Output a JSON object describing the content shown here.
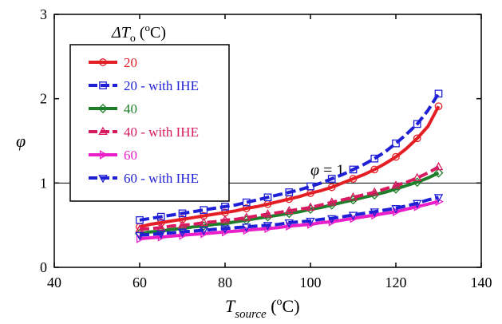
{
  "chart_data": {
    "type": "line",
    "xlabel": "T_source (°C)",
    "ylabel": "φ",
    "xlim": [
      40,
      140
    ],
    "ylim": [
      0,
      3
    ],
    "xticks": [
      40,
      60,
      80,
      100,
      120,
      140
    ],
    "yticks": [
      0,
      1,
      2,
      3
    ],
    "legend_title": "ΔT_o (°C)",
    "legend_placement": "top-left",
    "grid": false,
    "reference_line": {
      "y": 1,
      "label": "φ = 1"
    },
    "x": [
      60,
      62.5,
      65,
      67.5,
      70,
      72.5,
      75,
      77.5,
      80,
      82.5,
      85,
      87.5,
      90,
      92.5,
      95,
      97.5,
      100,
      102.5,
      105,
      107.5,
      110,
      112.5,
      115,
      117.5,
      120,
      122.5,
      125,
      127.5,
      130
    ],
    "series": [
      {
        "name": "20",
        "color": "#e41e25",
        "marker": "circle",
        "dashed": false,
        "values": [
          0.48,
          0.51,
          0.53,
          0.55,
          0.57,
          0.59,
          0.61,
          0.63,
          0.65,
          0.67,
          0.7,
          0.72,
          0.75,
          0.78,
          0.81,
          0.84,
          0.88,
          0.91,
          0.95,
          1.0,
          1.05,
          1.1,
          1.16,
          1.23,
          1.31,
          1.41,
          1.53,
          1.67,
          1.91
        ]
      },
      {
        "name": "20 - with IHE",
        "color": "#1f1fd6",
        "marker": "square",
        "dashed": true,
        "values": [
          0.56,
          0.58,
          0.6,
          0.62,
          0.64,
          0.66,
          0.68,
          0.7,
          0.72,
          0.74,
          0.77,
          0.8,
          0.83,
          0.86,
          0.89,
          0.92,
          0.96,
          1.0,
          1.05,
          1.1,
          1.16,
          1.22,
          1.29,
          1.37,
          1.47,
          1.58,
          1.7,
          1.86,
          2.06
        ]
      },
      {
        "name": "40",
        "color": "#1e7f2a",
        "marker": "diamond",
        "dashed": false,
        "values": [
          0.4,
          0.42,
          0.43,
          0.45,
          0.46,
          0.48,
          0.49,
          0.51,
          0.52,
          0.54,
          0.56,
          0.58,
          0.6,
          0.62,
          0.64,
          0.66,
          0.69,
          0.71,
          0.74,
          0.77,
          0.8,
          0.83,
          0.86,
          0.89,
          0.93,
          0.97,
          1.01,
          1.06,
          1.12
        ]
      },
      {
        "name": "40 - with IHE",
        "color": "#d81b60",
        "marker": "triangle-up",
        "dashed": true,
        "values": [
          0.45,
          0.46,
          0.47,
          0.49,
          0.5,
          0.51,
          0.53,
          0.54,
          0.56,
          0.57,
          0.59,
          0.61,
          0.63,
          0.65,
          0.67,
          0.69,
          0.71,
          0.74,
          0.77,
          0.8,
          0.83,
          0.86,
          0.89,
          0.93,
          0.97,
          1.01,
          1.06,
          1.12,
          1.19
        ]
      },
      {
        "name": "60",
        "color": "#e91ec8",
        "marker": "triangle-right",
        "dashed": false,
        "values": [
          0.34,
          0.35,
          0.36,
          0.37,
          0.38,
          0.39,
          0.4,
          0.41,
          0.42,
          0.43,
          0.44,
          0.45,
          0.46,
          0.47,
          0.49,
          0.5,
          0.51,
          0.53,
          0.54,
          0.56,
          0.58,
          0.6,
          0.62,
          0.64,
          0.66,
          0.69,
          0.72,
          0.75,
          0.78
        ]
      },
      {
        "name": "60 - with IHE",
        "color": "#1f1fd6",
        "marker": "triangle-down",
        "dashed": true,
        "values": [
          0.38,
          0.39,
          0.4,
          0.41,
          0.42,
          0.43,
          0.44,
          0.45,
          0.46,
          0.47,
          0.48,
          0.49,
          0.5,
          0.51,
          0.53,
          0.54,
          0.55,
          0.57,
          0.58,
          0.6,
          0.62,
          0.64,
          0.66,
          0.68,
          0.7,
          0.73,
          0.76,
          0.8,
          0.83
        ]
      }
    ]
  }
}
